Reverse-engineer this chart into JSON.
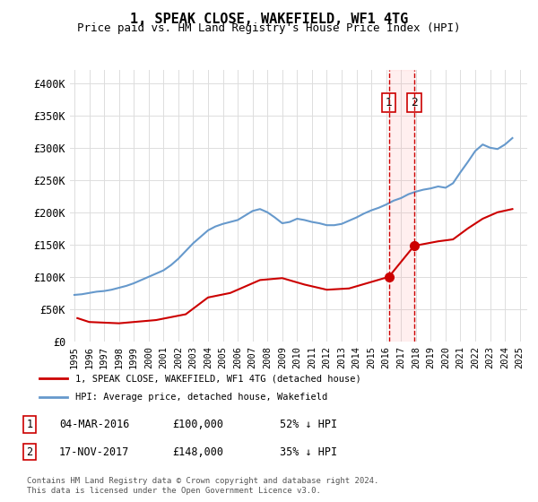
{
  "title": "1, SPEAK CLOSE, WAKEFIELD, WF1 4TG",
  "subtitle": "Price paid vs. HM Land Registry's House Price Index (HPI)",
  "ylabel_ticks": [
    "£0",
    "£50K",
    "£100K",
    "£150K",
    "£200K",
    "£250K",
    "£300K",
    "£350K",
    "£400K"
  ],
  "ytick_values": [
    0,
    50000,
    100000,
    150000,
    200000,
    250000,
    300000,
    350000,
    400000
  ],
  "ylim": [
    0,
    420000
  ],
  "xlim_start": 1995.0,
  "xlim_end": 2025.5,
  "hpi_years": [
    1995.0,
    1995.5,
    1996.0,
    1996.5,
    1997.0,
    1997.5,
    1998.0,
    1998.5,
    1999.0,
    1999.5,
    2000.0,
    2000.5,
    2001.0,
    2001.5,
    2002.0,
    2002.5,
    2003.0,
    2003.5,
    2004.0,
    2004.5,
    2005.0,
    2005.5,
    2006.0,
    2006.5,
    2007.0,
    2007.5,
    2008.0,
    2008.5,
    2009.0,
    2009.5,
    2010.0,
    2010.5,
    2011.0,
    2011.5,
    2012.0,
    2012.5,
    2013.0,
    2013.5,
    2014.0,
    2014.5,
    2015.0,
    2015.5,
    2016.0,
    2016.5,
    2017.0,
    2017.5,
    2018.0,
    2018.5,
    2019.0,
    2019.5,
    2020.0,
    2020.5,
    2021.0,
    2021.5,
    2022.0,
    2022.5,
    2023.0,
    2023.5,
    2024.0,
    2024.5
  ],
  "hpi_values": [
    72000,
    73000,
    75000,
    77000,
    78000,
    80000,
    83000,
    86000,
    90000,
    95000,
    100000,
    105000,
    110000,
    118000,
    128000,
    140000,
    152000,
    162000,
    172000,
    178000,
    182000,
    185000,
    188000,
    195000,
    202000,
    205000,
    200000,
    192000,
    183000,
    185000,
    190000,
    188000,
    185000,
    183000,
    180000,
    180000,
    182000,
    187000,
    192000,
    198000,
    203000,
    207000,
    212000,
    218000,
    222000,
    228000,
    232000,
    235000,
    237000,
    240000,
    238000,
    245000,
    262000,
    278000,
    295000,
    305000,
    300000,
    298000,
    305000,
    315000
  ],
  "property_sales": [
    {
      "year": 1995.2,
      "price": 36000
    },
    {
      "year": 1996.0,
      "price": 30000
    },
    {
      "year": 1998.0,
      "price": 28000
    },
    {
      "year": 2000.5,
      "price": 33000
    },
    {
      "year": 2002.5,
      "price": 42000
    },
    {
      "year": 2004.0,
      "price": 68000
    },
    {
      "year": 2005.5,
      "price": 75000
    },
    {
      "year": 2007.5,
      "price": 95000
    },
    {
      "year": 2009.0,
      "price": 98000
    },
    {
      "year": 2010.5,
      "price": 88000
    },
    {
      "year": 2012.0,
      "price": 80000
    },
    {
      "year": 2013.5,
      "price": 82000
    },
    {
      "year": 2016.18,
      "price": 100000
    },
    {
      "year": 2017.88,
      "price": 148000
    },
    {
      "year": 2019.5,
      "price": 155000
    },
    {
      "year": 2020.5,
      "price": 158000
    },
    {
      "year": 2021.5,
      "price": 175000
    },
    {
      "year": 2022.5,
      "price": 190000
    },
    {
      "year": 2023.5,
      "price": 200000
    },
    {
      "year": 2024.5,
      "price": 205000
    }
  ],
  "annotation1": {
    "year": 2016.18,
    "price": 100000,
    "label": "1",
    "date": "04-MAR-2016",
    "amount": "£100,000",
    "pct": "52% ↓ HPI"
  },
  "annotation2": {
    "year": 2017.88,
    "price": 148000,
    "label": "2",
    "date": "17-NOV-2017",
    "amount": "£148,000",
    "pct": "35% ↓ HPI"
  },
  "legend_label_red": "1, SPEAK CLOSE, WAKEFIELD, WF1 4TG (detached house)",
  "legend_label_blue": "HPI: Average price, detached house, Wakefield",
  "footer": "Contains HM Land Registry data © Crown copyright and database right 2024.\nThis data is licensed under the Open Government Licence v3.0.",
  "red_color": "#cc0000",
  "blue_color": "#6699cc",
  "bg_color": "#ffffff",
  "grid_color": "#dddddd",
  "xtick_years": [
    1995,
    1996,
    1997,
    1998,
    1999,
    2000,
    2001,
    2002,
    2003,
    2004,
    2005,
    2006,
    2007,
    2008,
    2009,
    2010,
    2011,
    2012,
    2013,
    2014,
    2015,
    2016,
    2017,
    2018,
    2019,
    2020,
    2021,
    2022,
    2023,
    2024,
    2025
  ]
}
